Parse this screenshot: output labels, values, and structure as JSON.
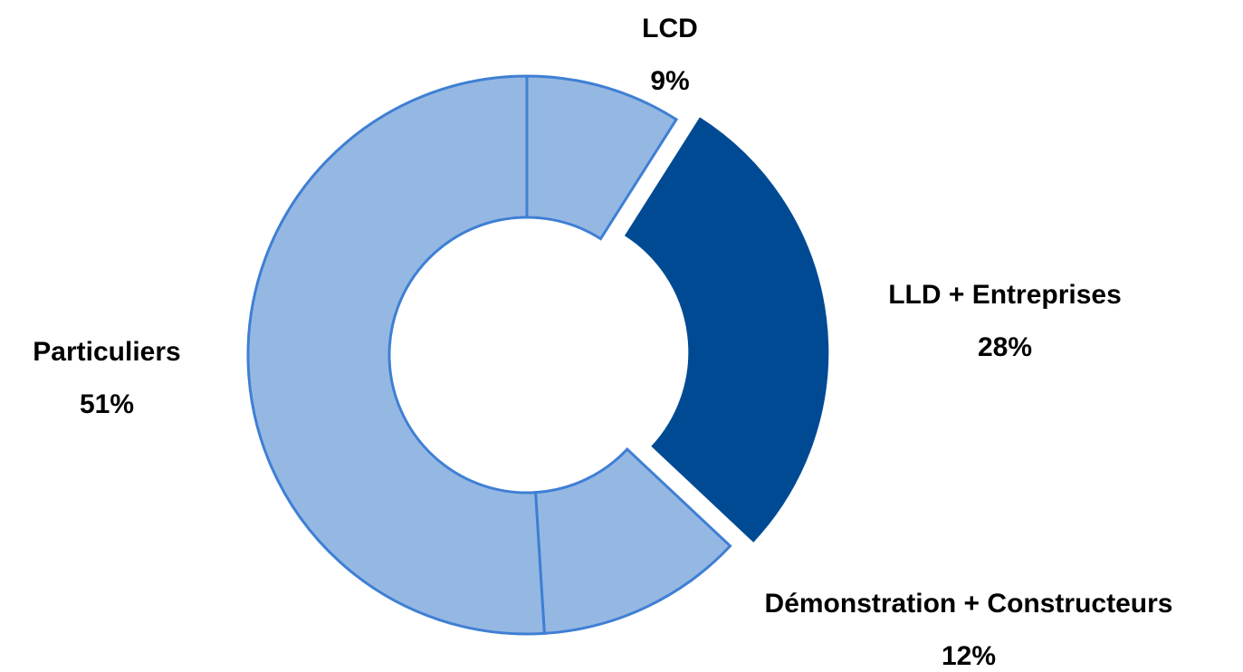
{
  "chart_data": {
    "type": "donut",
    "categories": [
      "LCD",
      "LLD + Entreprises",
      "Démonstration + Constructeurs",
      "Particuliers"
    ],
    "values": [
      9,
      28,
      12,
      51
    ],
    "value_labels": [
      "9%",
      "28%",
      "12%",
      "51%"
    ],
    "colors": [
      "#95b8e3",
      "#004a94",
      "#95b8e3",
      "#95b8e3"
    ],
    "exploded": [
      false,
      true,
      false,
      false
    ]
  }
}
